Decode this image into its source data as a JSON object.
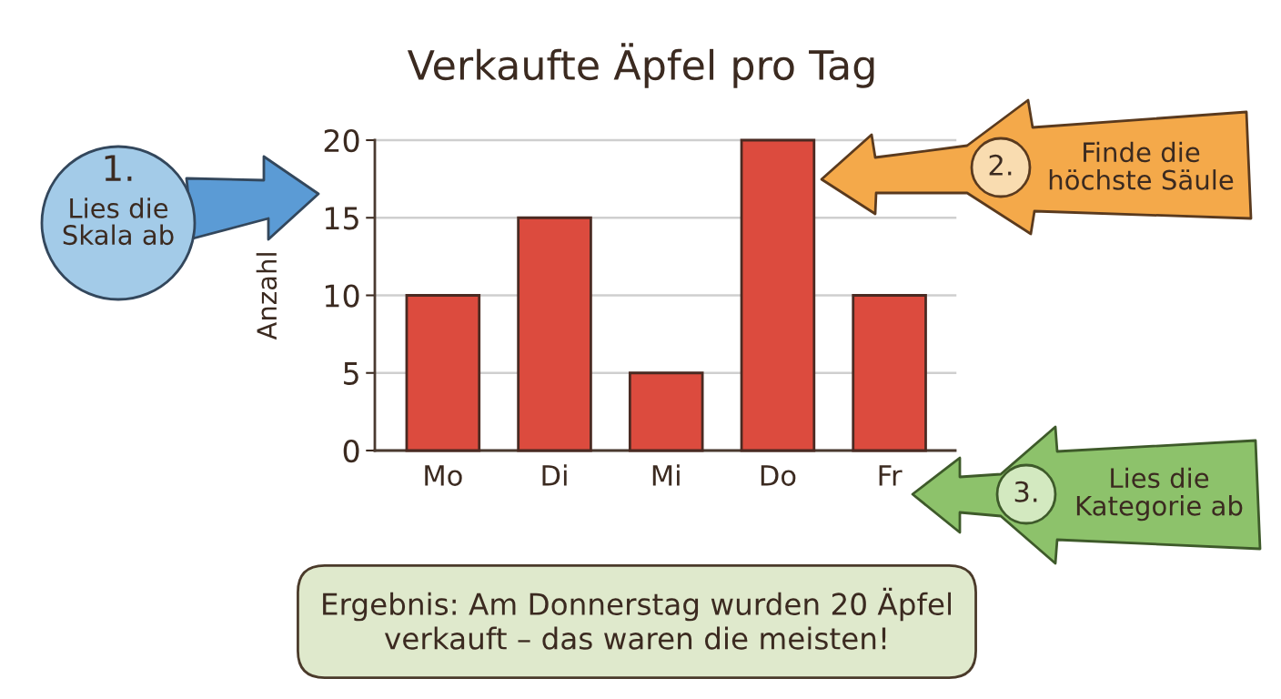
{
  "chart_data": {
    "type": "bar",
    "title": "Verkaufte Äpfel pro Tag",
    "ylabel": "Anzahl",
    "categories": [
      "Mo",
      "Di",
      "Mi",
      "Do",
      "Fr"
    ],
    "values": [
      10,
      15,
      5,
      20,
      10
    ],
    "color": "#dc4b3e",
    "ylim": [
      0,
      20
    ],
    "yticks": [
      0,
      5,
      10,
      15,
      20
    ],
    "grid": "y",
    "annotations": [
      "1.\nLies die\nSkala ab",
      "2.\nFinde die\nhöchste Säule",
      "3.\nLies die\nKategorie ab",
      "Ergebnis: Am Donnerstag wurden 20 Äpfel\nverkauft – das waren die meisten!"
    ]
  }
}
